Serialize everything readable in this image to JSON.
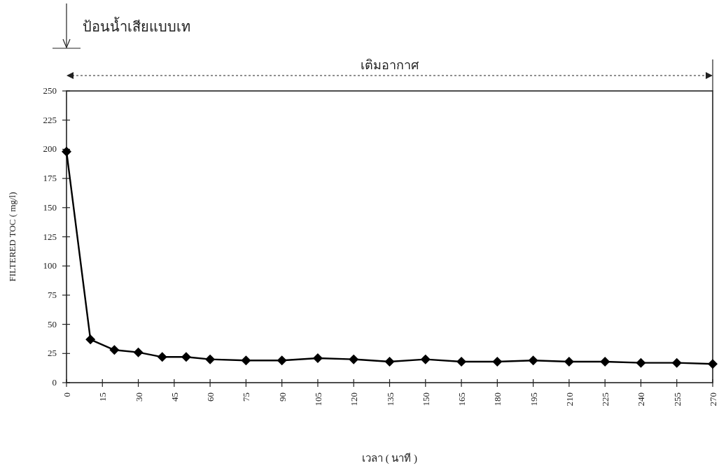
{
  "chart_data": {
    "type": "line",
    "xlabel": "เวลา ( นาที )",
    "ylabel": "FILTERED TOC ( mg/l)",
    "x": [
      0,
      10,
      20,
      30,
      40,
      50,
      60,
      75,
      90,
      105,
      120,
      135,
      150,
      165,
      180,
      195,
      210,
      225,
      240,
      255,
      270
    ],
    "series": [
      {
        "color": "#000000",
        "values": [
          198,
          37,
          28,
          26,
          22,
          22,
          20,
          19,
          19,
          21,
          20,
          18,
          20,
          18,
          18,
          19,
          18,
          18,
          17,
          17,
          16
        ]
      }
    ],
    "xlim": [
      0,
      270
    ],
    "xticks": [
      0,
      15,
      30,
      45,
      60,
      75,
      90,
      105,
      120,
      135,
      150,
      165,
      180,
      195,
      210,
      225,
      240,
      255,
      270
    ],
    "ylim": [
      0,
      250
    ],
    "yticks": [
      0,
      25,
      50,
      75,
      100,
      125,
      150,
      175,
      200,
      225,
      250
    ],
    "marker": "diamond",
    "line_style": "solid",
    "grid": false,
    "annotations": [
      "ป้อนน้ำเสียแบบเท",
      "เติมอากาศ"
    ]
  }
}
